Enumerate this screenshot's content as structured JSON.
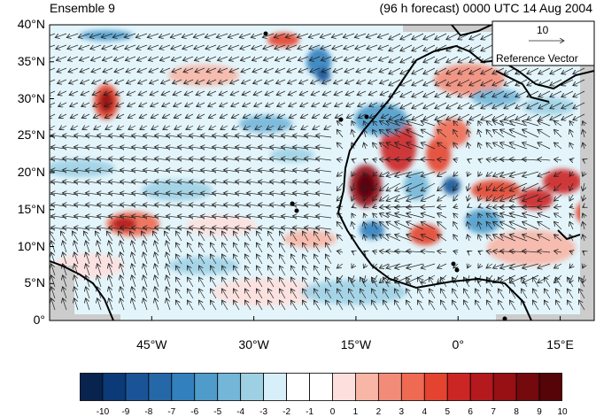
{
  "header": {
    "left_title": "Ensemble 9",
    "right_title": "(96 h forecast) 0000 UTC 14 Aug 2004"
  },
  "map": {
    "lat_labels": [
      "40°N",
      "35°N",
      "30°N",
      "25°N",
      "20°N",
      "15°N",
      "10°N",
      "5°N",
      "0°"
    ],
    "lon_labels": [
      "45°W",
      "30°W",
      "15°W",
      "0°",
      "15°E"
    ],
    "land_color": "#cccccc",
    "coast_color": "#000000"
  },
  "reference_vector": {
    "magnitude": "10",
    "label": "Reference Vector"
  },
  "colorbar": {
    "labels": [
      "-10",
      "-9",
      "-8",
      "-7",
      "-6",
      "-5",
      "-4",
      "-3",
      "-2",
      "-1",
      "0",
      "1",
      "2",
      "3",
      "4",
      "5",
      "6",
      "7",
      "8",
      "9",
      "10"
    ],
    "colors": [
      "#08234d",
      "#0c3a78",
      "#1a5496",
      "#2468a8",
      "#3280bc",
      "#4f9ccb",
      "#73b6d8",
      "#9ed0e4",
      "#d6eff8",
      "#ffffff",
      "#ffffff",
      "#fde0dd",
      "#f7b6a6",
      "#f28c78",
      "#ee6a52",
      "#e4432f",
      "#cc2624",
      "#b4191d",
      "#961014",
      "#740a0e",
      "#550407"
    ]
  }
}
